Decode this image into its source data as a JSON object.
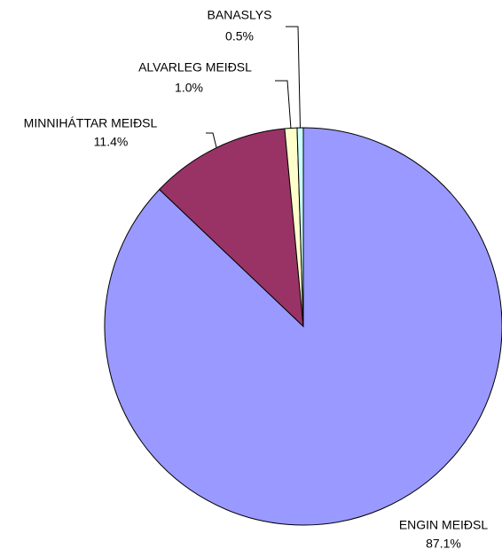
{
  "chart_data": {
    "type": "pie",
    "categories": [
      "ENGIN MEIÐSL",
      "MINNIHÁTTAR MEIÐSL",
      "ALVARLEG MEIÐSL",
      "BANASLYS"
    ],
    "values": [
      87.1,
      11.4,
      1.0,
      0.5
    ],
    "value_labels": [
      "87.1%",
      "11.4%",
      "1.0%",
      "0.5%"
    ],
    "colors": [
      "#9999ff",
      "#993366",
      "#ffffcc",
      "#ccffff"
    ]
  }
}
